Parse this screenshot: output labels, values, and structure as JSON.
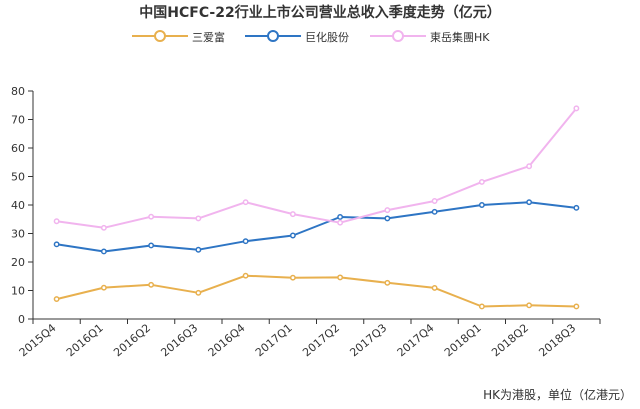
{
  "chart_data": {
    "type": "line",
    "title": "中国HCFC-22行业上市公司营业总收入季度走势（亿元）",
    "categories": [
      "2015Q4",
      "2016Q1",
      "2016Q2",
      "2016Q3",
      "2016Q4",
      "2017Q1",
      "2017Q2",
      "2017Q3",
      "2017Q4",
      "2018Q1",
      "2018Q2",
      "2018Q3"
    ],
    "series": [
      {
        "name": "三爱富",
        "color": "#E8B04E",
        "values": [
          7,
          11,
          12,
          9.2,
          15.2,
          14.5,
          14.6,
          12.7,
          10.9,
          4.4,
          4.8,
          4.4
        ]
      },
      {
        "name": "巨化股份",
        "color": "#2E75C4",
        "values": [
          26.2,
          23.7,
          25.8,
          24.3,
          27.3,
          29.3,
          35.8,
          35.3,
          37.6,
          40,
          41,
          39
        ]
      },
      {
        "name": "東岳集團HK",
        "color": "#F1B4EE",
        "values": [
          34.3,
          32,
          35.9,
          35.3,
          41,
          36.8,
          33.8,
          38.2,
          41.4,
          48.1,
          53.6,
          73.9
        ]
      }
    ],
    "ylim": [
      0,
      80
    ],
    "yticks": [
      0,
      10,
      20,
      30,
      40,
      50,
      60,
      70,
      80
    ],
    "grid": false,
    "legend_position": "top",
    "xlabel": "",
    "ylabel": ""
  },
  "footnote": "HK为港股，单位（亿港元）"
}
